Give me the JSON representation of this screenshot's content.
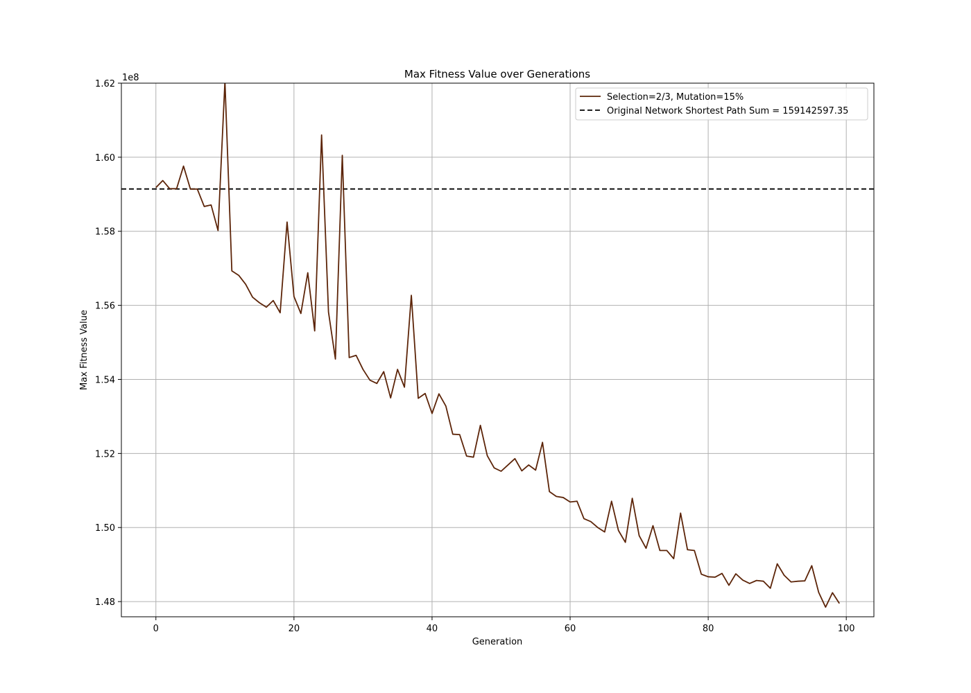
{
  "chart_data": {
    "type": "line",
    "title": "Max Fitness Value over Generations",
    "xlabel": "Generation",
    "ylabel": "Max Fitness Value",
    "y_scale_note": "1e8",
    "xlim": [
      -5,
      104
    ],
    "ylim": [
      1.4759,
      1.62
    ],
    "x_ticks": [
      0,
      20,
      40,
      60,
      80,
      100
    ],
    "y_ticks": [
      1.48,
      1.5,
      1.52,
      1.54,
      1.56,
      1.58,
      1.6,
      1.62
    ],
    "y_tick_labels": [
      "1.48",
      "1.50",
      "1.52",
      "1.54",
      "1.56",
      "1.58",
      "1.60",
      "1.62"
    ],
    "grid": true,
    "legend_position": "top-right",
    "colors": {
      "series": "#5c2408",
      "reference": "#000000"
    },
    "series": [
      {
        "name": "Selection=2/3, Mutation=15%",
        "style": "solid",
        "x": [
          0,
          1,
          2,
          3,
          4,
          5,
          6,
          7,
          8,
          9,
          10,
          11,
          12,
          13,
          14,
          15,
          16,
          17,
          18,
          19,
          20,
          21,
          22,
          23,
          24,
          25,
          26,
          27,
          28,
          29,
          30,
          31,
          32,
          33,
          34,
          35,
          36,
          37,
          38,
          39,
          40,
          41,
          42,
          43,
          44,
          45,
          46,
          47,
          48,
          49,
          50,
          51,
          52,
          53,
          54,
          55,
          56,
          57,
          58,
          59,
          60,
          61,
          62,
          63,
          64,
          65,
          66,
          67,
          68,
          69,
          70,
          71,
          72,
          73,
          74,
          75,
          76,
          77,
          78,
          79,
          80,
          81,
          82,
          83,
          84,
          85,
          86,
          87,
          88,
          89,
          90,
          91,
          92,
          93,
          94,
          95,
          96,
          97,
          98,
          99
        ],
        "values": [
          1.5918,
          1.5937,
          1.5915,
          1.5915,
          1.5976,
          1.5914,
          1.5914,
          1.5867,
          1.5871,
          1.5802,
          1.6205,
          1.5693,
          1.5681,
          1.5657,
          1.5622,
          1.5607,
          1.5595,
          1.5613,
          1.558,
          1.5825,
          1.5624,
          1.5578,
          1.5688,
          1.5531,
          1.606,
          1.5582,
          1.5455,
          1.6005,
          1.5459,
          1.5465,
          1.5427,
          1.5398,
          1.5389,
          1.5421,
          1.535,
          1.5427,
          1.5379,
          1.5627,
          1.5349,
          1.5362,
          1.5308,
          1.5361,
          1.5328,
          1.5252,
          1.5251,
          1.5193,
          1.519,
          1.5276,
          1.5194,
          1.5161,
          1.5152,
          1.5169,
          1.5186,
          1.5153,
          1.5169,
          1.5155,
          1.523,
          1.5097,
          1.5084,
          1.5081,
          1.5069,
          1.5071,
          1.5024,
          1.5016,
          1.5,
          1.4988,
          1.5071,
          1.4992,
          1.496,
          1.5079,
          1.4978,
          1.4944,
          1.5005,
          1.4938,
          1.4938,
          1.4916,
          1.5039,
          1.494,
          1.4938,
          1.4874,
          1.4867,
          1.4866,
          1.4876,
          1.4844,
          1.4875,
          1.4858,
          1.4849,
          1.4857,
          1.4855,
          1.4836,
          1.4902,
          1.4871,
          1.4853,
          1.4855,
          1.4856,
          1.4897,
          1.4825,
          1.4785,
          1.4824,
          1.4795
        ]
      },
      {
        "name": "Original Network Shortest Path Sum = 159142597.35",
        "style": "dashed",
        "value": 1.5914259735
      }
    ]
  }
}
